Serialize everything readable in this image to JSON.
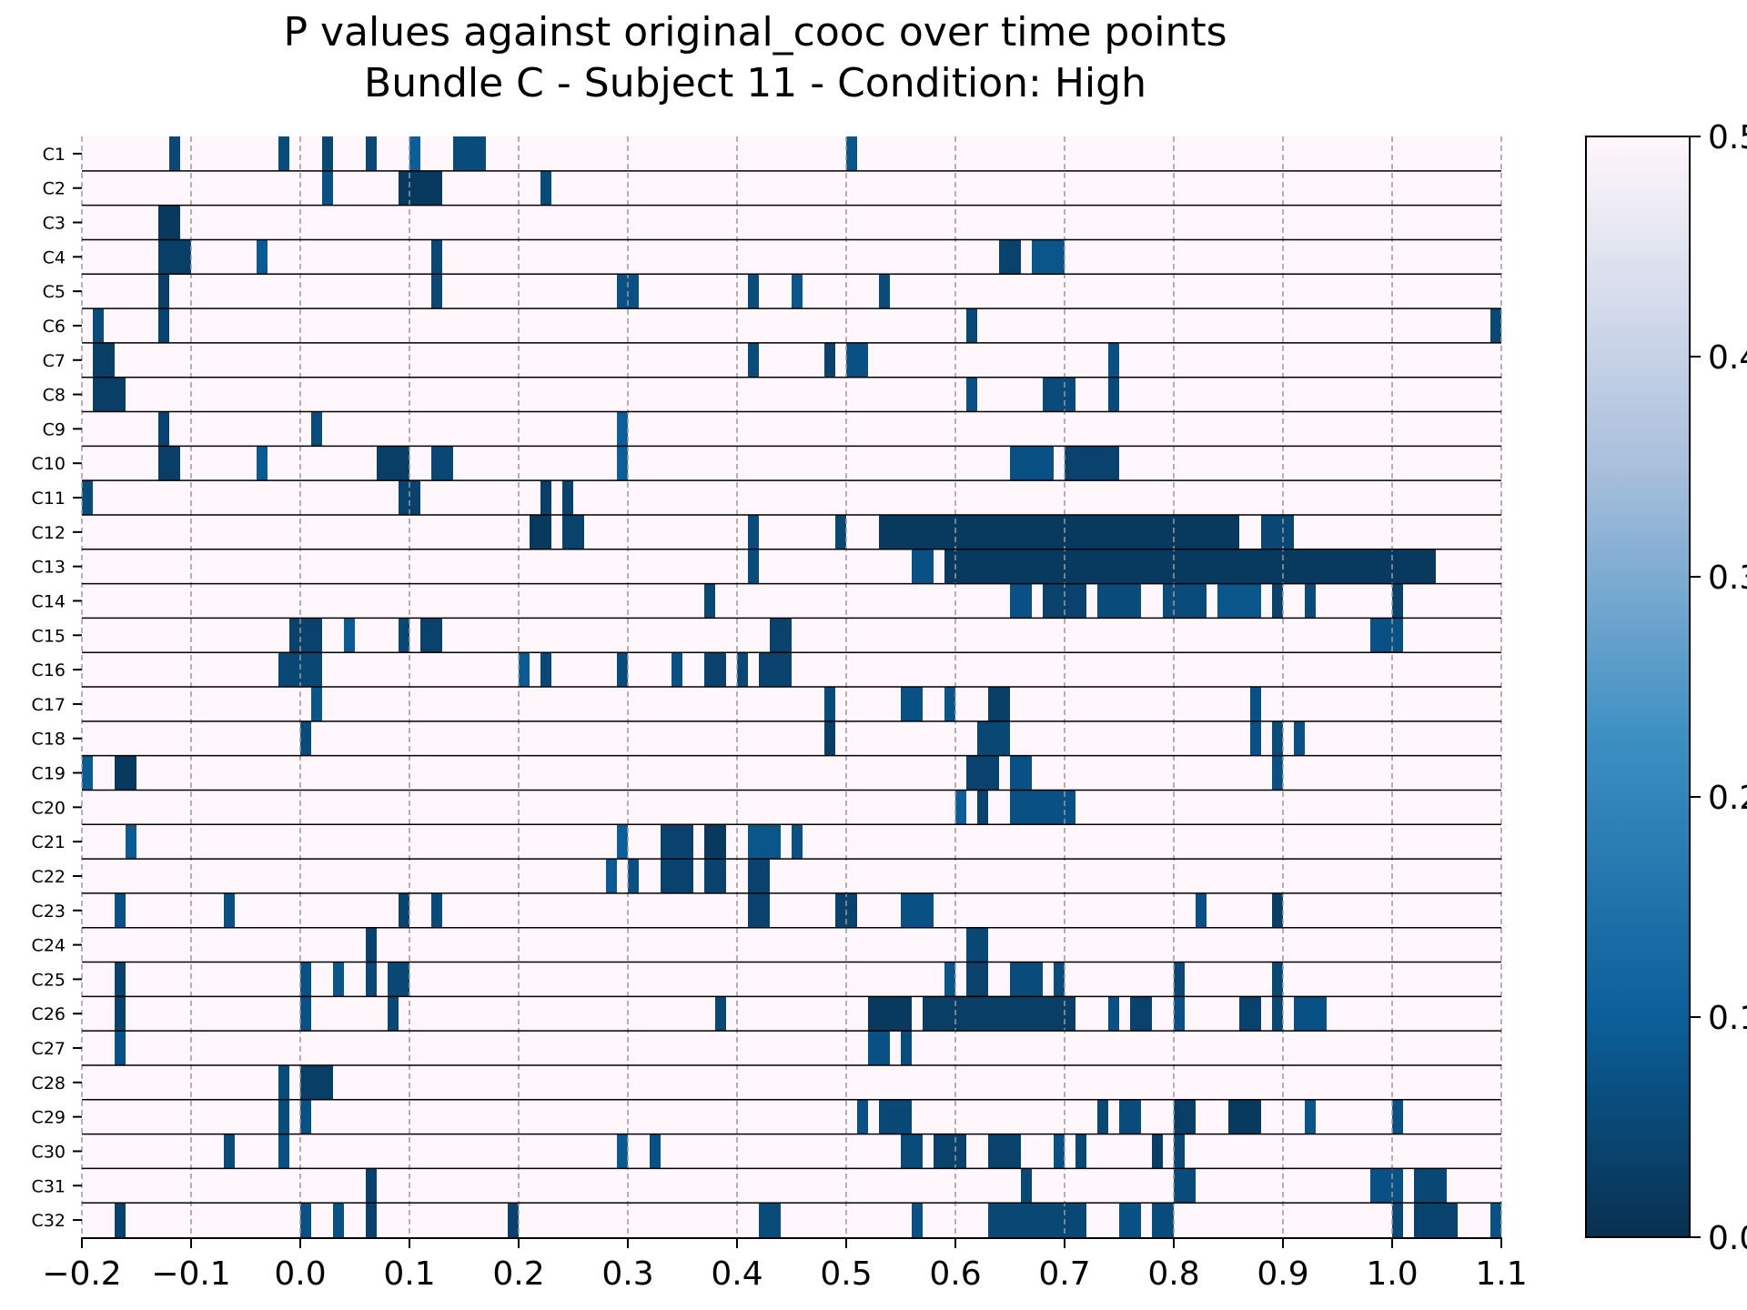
{
  "chart_data": {
    "type": "heatmap",
    "title": "P values against original_cooc over time points",
    "subtitle": "Bundle C - Subject 11 - Condition: High",
    "xlabel": "",
    "ylabel": "",
    "xlim": [
      -0.2,
      1.1
    ],
    "x_ticks": [
      "−0.2",
      "−0.1",
      "0.0",
      "0.1",
      "0.2",
      "0.3",
      "0.4",
      "0.5",
      "0.6",
      "0.7",
      "0.8",
      "0.9",
      "1.0",
      "1.1"
    ],
    "x_tick_values": [
      -0.2,
      -0.1,
      0.0,
      0.1,
      0.2,
      0.3,
      0.4,
      0.5,
      0.6,
      0.7,
      0.8,
      0.9,
      1.0,
      1.1
    ],
    "grid": "vertical dashed at x ticks",
    "colormap": {
      "low": "#08304f",
      "mid1": "#0a5f9a",
      "mid2": "#3b8fc2",
      "mid3": "#a9bfdc",
      "high": "#fff7fb"
    },
    "colorbar": {
      "range": [
        0.0,
        0.5
      ],
      "ticks": [
        "0.0",
        "0.1",
        "0.2",
        "0.3",
        "0.4",
        "0.5"
      ],
      "tick_values": [
        0.0,
        0.1,
        0.2,
        0.3,
        0.4,
        0.5
      ],
      "placement": "right"
    },
    "background_value": 0.5,
    "rows": [
      {
        "label": "C1",
        "segments": [
          [
            -0.12,
            -0.11,
            0.05
          ],
          [
            -0.02,
            -0.01,
            0.06
          ],
          [
            0.02,
            0.03,
            0.05
          ],
          [
            0.06,
            0.07,
            0.05
          ],
          [
            0.1,
            0.11,
            0.1
          ],
          [
            0.14,
            0.17,
            0.06
          ],
          [
            0.5,
            0.51,
            0.08
          ]
        ]
      },
      {
        "label": "C2",
        "segments": [
          [
            0.02,
            0.03,
            0.07
          ],
          [
            0.09,
            0.13,
            0.02
          ],
          [
            0.22,
            0.23,
            0.06
          ]
        ]
      },
      {
        "label": "C3",
        "segments": [
          [
            -0.13,
            -0.11,
            0.02
          ]
        ]
      },
      {
        "label": "C4",
        "segments": [
          [
            -0.13,
            -0.1,
            0.03
          ],
          [
            -0.04,
            -0.03,
            0.09
          ],
          [
            0.12,
            0.13,
            0.05
          ],
          [
            0.64,
            0.66,
            0.04
          ],
          [
            0.67,
            0.7,
            0.08
          ]
        ]
      },
      {
        "label": "C5",
        "segments": [
          [
            -0.13,
            -0.12,
            0.03
          ],
          [
            0.12,
            0.13,
            0.05
          ],
          [
            0.29,
            0.31,
            0.07
          ],
          [
            0.41,
            0.42,
            0.06
          ],
          [
            0.45,
            0.46,
            0.08
          ],
          [
            0.53,
            0.54,
            0.06
          ]
        ]
      },
      {
        "label": "C6",
        "segments": [
          [
            -0.19,
            -0.18,
            0.06
          ],
          [
            -0.13,
            -0.12,
            0.04
          ],
          [
            0.61,
            0.62,
            0.05
          ],
          [
            1.09,
            1.1,
            0.05
          ]
        ]
      },
      {
        "label": "C7",
        "segments": [
          [
            -0.19,
            -0.17,
            0.03
          ],
          [
            0.41,
            0.42,
            0.06
          ],
          [
            0.48,
            0.49,
            0.04
          ],
          [
            0.5,
            0.52,
            0.07
          ],
          [
            0.74,
            0.75,
            0.07
          ]
        ]
      },
      {
        "label": "C8",
        "segments": [
          [
            -0.19,
            -0.16,
            0.03
          ],
          [
            0.61,
            0.62,
            0.07
          ],
          [
            0.68,
            0.71,
            0.06
          ],
          [
            0.74,
            0.75,
            0.06
          ]
        ]
      },
      {
        "label": "C9",
        "segments": [
          [
            -0.13,
            -0.12,
            0.04
          ],
          [
            0.01,
            0.02,
            0.06
          ],
          [
            0.29,
            0.3,
            0.1
          ]
        ]
      },
      {
        "label": "C10",
        "segments": [
          [
            -0.13,
            -0.11,
            0.03
          ],
          [
            -0.04,
            -0.03,
            0.09
          ],
          [
            0.07,
            0.1,
            0.03
          ],
          [
            0.12,
            0.14,
            0.05
          ],
          [
            0.29,
            0.3,
            0.1
          ],
          [
            0.65,
            0.69,
            0.07
          ],
          [
            0.7,
            0.75,
            0.04
          ]
        ]
      },
      {
        "label": "C11",
        "segments": [
          [
            -0.2,
            -0.19,
            0.06
          ],
          [
            0.09,
            0.11,
            0.04
          ],
          [
            0.22,
            0.23,
            0.03
          ],
          [
            0.24,
            0.25,
            0.04
          ]
        ]
      },
      {
        "label": "C12",
        "segments": [
          [
            0.21,
            0.23,
            0.02
          ],
          [
            0.24,
            0.26,
            0.04
          ],
          [
            0.41,
            0.42,
            0.06
          ],
          [
            0.49,
            0.5,
            0.05
          ],
          [
            0.53,
            0.86,
            0.02
          ],
          [
            0.88,
            0.91,
            0.05
          ]
        ]
      },
      {
        "label": "C13",
        "segments": [
          [
            0.41,
            0.42,
            0.06
          ],
          [
            0.56,
            0.58,
            0.07
          ],
          [
            0.59,
            1.04,
            0.02
          ]
        ]
      },
      {
        "label": "C14",
        "segments": [
          [
            0.37,
            0.38,
            0.05
          ],
          [
            0.65,
            0.67,
            0.07
          ],
          [
            0.68,
            0.72,
            0.04
          ],
          [
            0.73,
            0.77,
            0.06
          ],
          [
            0.79,
            0.83,
            0.06
          ],
          [
            0.84,
            0.88,
            0.08
          ],
          [
            0.89,
            0.9,
            0.04
          ],
          [
            0.92,
            0.93,
            0.06
          ],
          [
            1.0,
            1.01,
            0.04
          ]
        ]
      },
      {
        "label": "C15",
        "segments": [
          [
            -0.01,
            0.02,
            0.04
          ],
          [
            0.04,
            0.05,
            0.09
          ],
          [
            0.09,
            0.1,
            0.05
          ],
          [
            0.11,
            0.13,
            0.04
          ],
          [
            0.43,
            0.45,
            0.04
          ],
          [
            0.98,
            1.01,
            0.07
          ]
        ]
      },
      {
        "label": "C16",
        "segments": [
          [
            -0.02,
            0.02,
            0.05
          ],
          [
            0.2,
            0.21,
            0.09
          ],
          [
            0.22,
            0.23,
            0.05
          ],
          [
            0.29,
            0.3,
            0.06
          ],
          [
            0.34,
            0.35,
            0.07
          ],
          [
            0.37,
            0.39,
            0.04
          ],
          [
            0.4,
            0.41,
            0.05
          ],
          [
            0.42,
            0.45,
            0.04
          ]
        ]
      },
      {
        "label": "C17",
        "segments": [
          [
            0.01,
            0.02,
            0.08
          ],
          [
            0.48,
            0.49,
            0.06
          ],
          [
            0.55,
            0.57,
            0.07
          ],
          [
            0.59,
            0.6,
            0.08
          ],
          [
            0.63,
            0.65,
            0.03
          ],
          [
            0.87,
            0.88,
            0.07
          ]
        ]
      },
      {
        "label": "C18",
        "segments": [
          [
            0.0,
            0.01,
            0.06
          ],
          [
            0.48,
            0.49,
            0.03
          ],
          [
            0.62,
            0.65,
            0.05
          ],
          [
            0.87,
            0.88,
            0.07
          ],
          [
            0.89,
            0.9,
            0.06
          ],
          [
            0.91,
            0.92,
            0.07
          ]
        ]
      },
      {
        "label": "C19",
        "segments": [
          [
            -0.2,
            -0.19,
            0.09
          ],
          [
            -0.17,
            -0.15,
            0.02
          ],
          [
            0.61,
            0.64,
            0.04
          ],
          [
            0.65,
            0.67,
            0.07
          ],
          [
            0.89,
            0.9,
            0.07
          ]
        ]
      },
      {
        "label": "C20",
        "segments": [
          [
            0.6,
            0.61,
            0.1
          ],
          [
            0.62,
            0.63,
            0.04
          ],
          [
            0.65,
            0.71,
            0.07
          ]
        ]
      },
      {
        "label": "C21",
        "segments": [
          [
            -0.16,
            -0.15,
            0.09
          ],
          [
            0.29,
            0.3,
            0.1
          ],
          [
            0.33,
            0.36,
            0.04
          ],
          [
            0.37,
            0.39,
            0.02
          ],
          [
            0.41,
            0.44,
            0.08
          ],
          [
            0.45,
            0.46,
            0.07
          ]
        ]
      },
      {
        "label": "C22",
        "segments": [
          [
            0.28,
            0.29,
            0.09
          ],
          [
            0.3,
            0.31,
            0.07
          ],
          [
            0.33,
            0.36,
            0.04
          ],
          [
            0.37,
            0.39,
            0.04
          ],
          [
            0.41,
            0.43,
            0.04
          ]
        ]
      },
      {
        "label": "C23",
        "segments": [
          [
            -0.17,
            -0.16,
            0.07
          ],
          [
            -0.07,
            -0.06,
            0.07
          ],
          [
            0.09,
            0.1,
            0.04
          ],
          [
            0.12,
            0.13,
            0.06
          ],
          [
            0.41,
            0.43,
            0.04
          ],
          [
            0.49,
            0.51,
            0.04
          ],
          [
            0.55,
            0.58,
            0.07
          ],
          [
            0.82,
            0.83,
            0.07
          ],
          [
            0.89,
            0.9,
            0.03
          ]
        ]
      },
      {
        "label": "C24",
        "segments": [
          [
            0.06,
            0.07,
            0.04
          ],
          [
            0.61,
            0.63,
            0.05
          ]
        ]
      },
      {
        "label": "C25",
        "segments": [
          [
            -0.17,
            -0.16,
            0.04
          ],
          [
            0.0,
            0.01,
            0.07
          ],
          [
            0.03,
            0.04,
            0.08
          ],
          [
            0.06,
            0.07,
            0.05
          ],
          [
            0.08,
            0.1,
            0.05
          ],
          [
            0.59,
            0.6,
            0.08
          ],
          [
            0.61,
            0.63,
            0.04
          ],
          [
            0.65,
            0.68,
            0.06
          ],
          [
            0.69,
            0.7,
            0.06
          ],
          [
            0.8,
            0.81,
            0.05
          ],
          [
            0.89,
            0.9,
            0.05
          ]
        ]
      },
      {
        "label": "C26",
        "segments": [
          [
            -0.17,
            -0.16,
            0.04
          ],
          [
            0.0,
            0.01,
            0.07
          ],
          [
            0.08,
            0.09,
            0.05
          ],
          [
            0.38,
            0.39,
            0.05
          ],
          [
            0.52,
            0.56,
            0.02
          ],
          [
            0.57,
            0.71,
            0.03
          ],
          [
            0.74,
            0.75,
            0.07
          ],
          [
            0.76,
            0.78,
            0.04
          ],
          [
            0.8,
            0.81,
            0.07
          ],
          [
            0.86,
            0.88,
            0.04
          ],
          [
            0.89,
            0.9,
            0.05
          ],
          [
            0.91,
            0.94,
            0.07
          ]
        ]
      },
      {
        "label": "C27",
        "segments": [
          [
            -0.17,
            -0.16,
            0.07
          ],
          [
            0.52,
            0.54,
            0.07
          ],
          [
            0.55,
            0.56,
            0.06
          ]
        ]
      },
      {
        "label": "C28",
        "segments": [
          [
            -0.02,
            -0.01,
            0.06
          ],
          [
            0.0,
            0.03,
            0.03
          ]
        ]
      },
      {
        "label": "C29",
        "segments": [
          [
            -0.02,
            -0.01,
            0.06
          ],
          [
            0.0,
            0.01,
            0.07
          ],
          [
            0.51,
            0.52,
            0.07
          ],
          [
            0.53,
            0.56,
            0.05
          ],
          [
            0.73,
            0.74,
            0.05
          ],
          [
            0.75,
            0.77,
            0.06
          ],
          [
            0.8,
            0.82,
            0.03
          ],
          [
            0.85,
            0.88,
            0.02
          ],
          [
            0.92,
            0.93,
            0.08
          ],
          [
            1.0,
            1.01,
            0.07
          ]
        ]
      },
      {
        "label": "C30",
        "segments": [
          [
            -0.07,
            -0.06,
            0.06
          ],
          [
            -0.02,
            -0.01,
            0.07
          ],
          [
            0.29,
            0.3,
            0.09
          ],
          [
            0.32,
            0.33,
            0.07
          ],
          [
            0.55,
            0.57,
            0.06
          ],
          [
            0.58,
            0.61,
            0.04
          ],
          [
            0.63,
            0.66,
            0.04
          ],
          [
            0.69,
            0.7,
            0.07
          ],
          [
            0.71,
            0.72,
            0.05
          ],
          [
            0.78,
            0.79,
            0.03
          ],
          [
            0.8,
            0.81,
            0.05
          ]
        ]
      },
      {
        "label": "C31",
        "segments": [
          [
            0.06,
            0.07,
            0.04
          ],
          [
            0.66,
            0.67,
            0.05
          ],
          [
            0.8,
            0.82,
            0.06
          ],
          [
            0.98,
            1.01,
            0.07
          ],
          [
            1.02,
            1.05,
            0.05
          ]
        ]
      },
      {
        "label": "C32",
        "segments": [
          [
            -0.17,
            -0.16,
            0.04
          ],
          [
            0.0,
            0.01,
            0.07
          ],
          [
            0.03,
            0.04,
            0.07
          ],
          [
            0.06,
            0.07,
            0.04
          ],
          [
            0.19,
            0.2,
            0.04
          ],
          [
            0.42,
            0.44,
            0.06
          ],
          [
            0.56,
            0.57,
            0.07
          ],
          [
            0.63,
            0.72,
            0.05
          ],
          [
            0.75,
            0.77,
            0.07
          ],
          [
            0.78,
            0.8,
            0.06
          ],
          [
            1.0,
            1.01,
            0.05
          ],
          [
            1.02,
            1.06,
            0.04
          ],
          [
            1.09,
            1.1,
            0.07
          ]
        ]
      }
    ]
  }
}
